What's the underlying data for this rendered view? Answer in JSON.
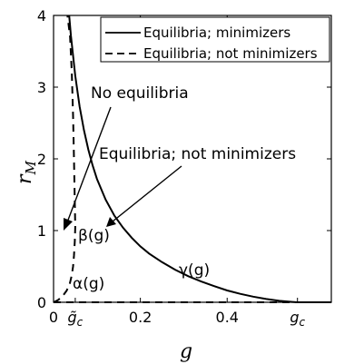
{
  "chart_data": {
    "type": "line",
    "xlabel": "g",
    "ylabel": "r",
    "ylabel_subscript": "M",
    "xlim": [
      0,
      0.64
    ],
    "ylim": [
      0,
      4
    ],
    "grid": false,
    "legend_position": "top-right",
    "x_ticks": [
      {
        "value": 0,
        "label": "0"
      },
      {
        "value": 0.2,
        "label": "0.2"
      },
      {
        "value": 0.4,
        "label": "0.4"
      }
    ],
    "x_special_ticks": [
      {
        "value": 0.05,
        "label": "g̃",
        "sub": "c"
      },
      {
        "value": 0.562,
        "label": "g",
        "sub": "c"
      }
    ],
    "y_ticks": [
      {
        "value": 0,
        "label": "0"
      },
      {
        "value": 1,
        "label": "1"
      },
      {
        "value": 2,
        "label": "2"
      },
      {
        "value": 3,
        "label": "3"
      },
      {
        "value": 4,
        "label": "4"
      }
    ],
    "series": [
      {
        "name": "Equilibria; minimizers",
        "style": "solid",
        "x": [
          0.036,
          0.04,
          0.05,
          0.06,
          0.07,
          0.08,
          0.09,
          0.1,
          0.12,
          0.14,
          0.16,
          0.18,
          0.2,
          0.22,
          0.25,
          0.28,
          0.31,
          0.34,
          0.37,
          0.4,
          0.43,
          0.46,
          0.49,
          0.52,
          0.55,
          0.562,
          0.6,
          0.64
        ],
        "y": [
          4.0,
          3.72,
          3.16,
          2.73,
          2.4,
          2.13,
          1.91,
          1.72,
          1.43,
          1.21,
          1.04,
          0.9,
          0.78,
          0.68,
          0.56,
          0.455,
          0.365,
          0.29,
          0.225,
          0.165,
          0.118,
          0.078,
          0.045,
          0.02,
          0.005,
          0.0,
          0.0,
          0.0
        ]
      },
      {
        "name": "Equilibria; not minimizers",
        "style": "dashed",
        "x": [
          0.0,
          0.01,
          0.02,
          0.03,
          0.037,
          0.042,
          0.045,
          0.047,
          0.049,
          0.05,
          0.049,
          0.047,
          0.045,
          0.042,
          0.038,
          0.032
        ],
        "y": [
          0.0,
          0.03,
          0.08,
          0.16,
          0.25,
          0.38,
          0.5,
          0.65,
          0.85,
          1.05,
          1.4,
          2.0,
          2.6,
          3.2,
          3.7,
          4.0
        ]
      },
      {
        "name": "Equilibria; not minimizers",
        "style": "dashed",
        "x": [
          0.0,
          0.64
        ],
        "y": [
          0.0,
          0.0
        ]
      }
    ],
    "legend": [
      {
        "label": "Equilibria; minimizers",
        "style": "solid"
      },
      {
        "label": "Equilibria; not minimizers",
        "style": "dashed"
      }
    ],
    "annotations": [
      {
        "text": "No equilibria",
        "tip": [
          0.045,
          1.0
        ]
      },
      {
        "text": "Equilibria; not minimizers",
        "tip": [
          0.17,
          0.15
        ]
      },
      {
        "text": "β(g)",
        "at": [
          0.07,
          1.13
        ]
      },
      {
        "text": "α(g)",
        "at": [
          0.06,
          0.28
        ]
      },
      {
        "text": "γ(g)",
        "at": [
          0.33,
          0.3
        ]
      }
    ]
  }
}
